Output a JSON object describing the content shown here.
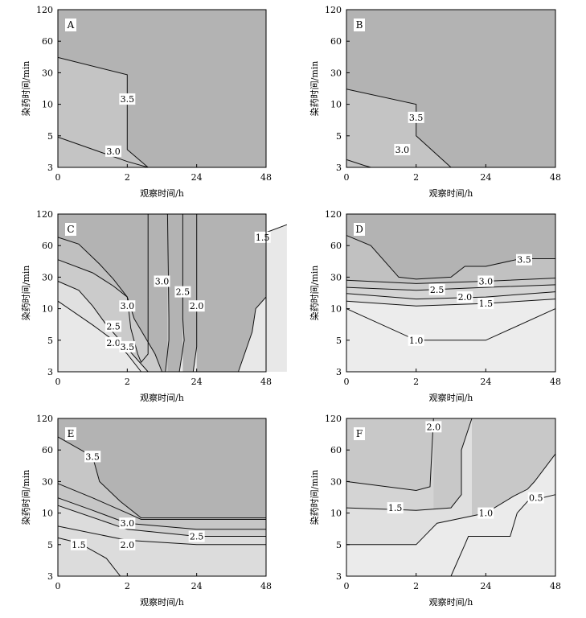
{
  "chart_data": [
    {
      "type": "contour",
      "panel_label": "A",
      "xlabel": "观察时间/h",
      "ylabel": "染药时间/min",
      "x_ticks": [
        "0",
        "2",
        "24",
        "48"
      ],
      "y_ticks": [
        "3",
        "5",
        "10",
        "30",
        "60",
        "120"
      ],
      "fill_levels": [
        "#c4c4c4",
        "#b3b3b3"
      ],
      "contours": [
        {
          "label": "3.0",
          "points": [
            [
              0,
              4.9
            ],
            [
              1,
              3.3
            ],
            [
              1.3,
              3
            ]
          ],
          "label_at": [
            0.8,
            3.9
          ]
        },
        {
          "label": "3.5",
          "points": [
            [
              0,
              42
            ],
            [
              1,
              28
            ],
            [
              1,
              4
            ],
            [
              1.3,
              3
            ]
          ],
          "label_at": [
            1,
            12
          ]
        }
      ]
    },
    {
      "type": "contour",
      "panel_label": "B",
      "xlabel": "观察时间/h",
      "ylabel": "染药时间/min",
      "x_ticks": [
        "0",
        "2",
        "24",
        "48"
      ],
      "y_ticks": [
        "3",
        "5",
        "10",
        "30",
        "60",
        "120"
      ],
      "fill_levels": [
        "#c4c4c4",
        "#b3b3b3"
      ],
      "contours": [
        {
          "label": "3.0",
          "points": [
            [
              0,
              3.4
            ],
            [
              0.25,
              3.1
            ],
            [
              0.35,
              3
            ]
          ],
          "label_at": [
            0.8,
            4.0
          ]
        },
        {
          "label": "3.5",
          "points": [
            [
              0,
              17
            ],
            [
              1,
              10
            ],
            [
              1,
              5
            ],
            [
              1.5,
              3
            ]
          ],
          "label_at": [
            1,
            7.5
          ]
        }
      ]
    },
    {
      "type": "contour",
      "panel_label": "C",
      "xlabel": "观察时间/h",
      "ylabel": "染药时间/min",
      "x_ticks": [
        "0",
        "2",
        "24",
        "48"
      ],
      "y_ticks": [
        "3",
        "5",
        "10",
        "30",
        "60",
        "120"
      ],
      "fill_levels": [
        "#e8e8e8",
        "#e0e0e0",
        "#d6d6d6",
        "#cbcbcb",
        "#c0c0c0",
        "#b3b3b3"
      ],
      "contours": [
        {
          "label": "1.5",
          "points": [
            [
              2.6,
              3
            ],
            [
              2.8,
              6
            ],
            [
              2.85,
              10
            ],
            [
              3.0,
              15
            ],
            [
              3.0,
              80
            ],
            [
              3.3,
              95
            ]
          ],
          "label_at": [
            2.95,
            72
          ]
        },
        {
          "label": "2.0",
          "points": [
            [
              0,
              13
            ],
            [
              0.5,
              7
            ],
            [
              0.8,
              5
            ],
            [
              1.0,
              4
            ],
            [
              1.2,
              3
            ]
          ],
          "label_at": [
            0.8,
            4.8
          ]
        },
        {
          "label": "2.0",
          "points": [
            [
              1.95,
              3
            ],
            [
              2.0,
              4.5
            ],
            [
              2.0,
              120
            ]
          ],
          "label_at": [
            2.0,
            11
          ]
        },
        {
          "label": "2.5",
          "points": [
            [
              0,
              26
            ],
            [
              0.3,
              19
            ],
            [
              0.5,
              11
            ],
            [
              0.7,
              7
            ],
            [
              1.3,
              3
            ]
          ],
          "label_at": [
            0.8,
            6.8
          ]
        },
        {
          "label": "2.5",
          "points": [
            [
              1.75,
              3
            ],
            [
              1.82,
              5
            ],
            [
              1.8,
              8
            ],
            [
              1.8,
              120
            ]
          ],
          "label_at": [
            1.8,
            18
          ]
        },
        {
          "label": "3.0",
          "points": [
            [
              0,
              44
            ],
            [
              0.5,
              33
            ],
            [
              0.8,
              22
            ],
            [
              1.0,
              15
            ],
            [
              1.1,
              8
            ],
            [
              1.4,
              4
            ],
            [
              1.5,
              3
            ]
          ],
          "label_at": [
            1,
            11
          ]
        },
        {
          "label": "3.0",
          "points": [
            [
              1.55,
              3
            ],
            [
              1.6,
              5
            ],
            [
              1.6,
              8
            ],
            [
              1.58,
              120
            ]
          ],
          "label_at": [
            1.5,
            26
          ]
        },
        {
          "label": "3.5",
          "points": [
            [
              0,
              72
            ],
            [
              0.3,
              62
            ],
            [
              0.6,
              40
            ],
            [
              0.8,
              28
            ],
            [
              1.0,
              15
            ],
            [
              1.05,
              6.5
            ],
            [
              1.15,
              4
            ],
            [
              1.2,
              3.5
            ],
            [
              1.3,
              4
            ],
            [
              1.3,
              6.5
            ],
            [
              1.3,
              120
            ]
          ],
          "label_at": [
            1.0,
            4.5
          ]
        }
      ]
    },
    {
      "type": "contour",
      "panel_label": "D",
      "xlabel": "观察时间/h",
      "ylabel": "染药时间/min",
      "x_ticks": [
        "0",
        "2",
        "24",
        "48"
      ],
      "y_ticks": [
        "3",
        "5",
        "10",
        "30",
        "60",
        "120"
      ],
      "fill_levels": [
        "#ececec",
        "#dedede",
        "#d4d4d4",
        "#cbcbcb",
        "#c1c1c1",
        "#b3b3b3"
      ],
      "contours": [
        {
          "label": "1.0",
          "points": [
            [
              0,
              10
            ],
            [
              1,
              5
            ],
            [
              2,
              5
            ],
            [
              3,
              10
            ]
          ],
          "label_at": [
            1,
            5
          ]
        },
        {
          "label": "1.5",
          "points": [
            [
              0,
              13
            ],
            [
              1,
              11
            ],
            [
              2,
              12
            ],
            [
              3,
              14
            ]
          ],
          "label_at": [
            2,
            12
          ]
        },
        {
          "label": "2.0",
          "points": [
            [
              0,
              17
            ],
            [
              1,
              14
            ],
            [
              2,
              15
            ],
            [
              3,
              18
            ]
          ],
          "label_at": [
            1.7,
            15
          ]
        },
        {
          "label": "2.5",
          "points": [
            [
              0,
              21
            ],
            [
              1,
              19
            ],
            [
              2,
              21
            ],
            [
              3,
              23
            ]
          ],
          "label_at": [
            1.3,
            19.5
          ]
        },
        {
          "label": "3.0",
          "points": [
            [
              0,
              27
            ],
            [
              1,
              24
            ],
            [
              2,
              26
            ],
            [
              3,
              29
            ]
          ],
          "label_at": [
            2,
            26
          ]
        },
        {
          "label": "3.5",
          "points": [
            [
              0,
              75
            ],
            [
              0.35,
              60
            ],
            [
              0.75,
              30
            ],
            [
              1.0,
              28
            ],
            [
              1.5,
              30
            ],
            [
              1.7,
              38
            ],
            [
              2.0,
              38
            ],
            [
              2.5,
              45
            ],
            [
              3,
              45
            ]
          ],
          "label_at": [
            2.55,
            44
          ]
        }
      ]
    },
    {
      "type": "contour",
      "panel_label": "E",
      "xlabel": "观察时间/h",
      "ylabel": "染药时间/min",
      "x_ticks": [
        "0",
        "2",
        "24",
        "48"
      ],
      "y_ticks": [
        "3",
        "5",
        "10",
        "30",
        "60",
        "120"
      ],
      "fill_levels": [
        "#dcdcdc",
        "#cfcfcf",
        "#c6c6c6",
        "#bdbdbd",
        "#b3b3b3"
      ],
      "contours": [
        {
          "label": "1.5",
          "points": [
            [
              0,
              5.8
            ],
            [
              0.3,
              5.2
            ],
            [
              0.7,
              4
            ],
            [
              0.9,
              3
            ],
            [
              1.0,
              3
            ]
          ],
          "label_at": [
            0.3,
            5
          ]
        },
        {
          "label": "2.0",
          "points": [
            [
              0,
              7.5
            ],
            [
              1,
              5.5
            ],
            [
              2,
              5.0
            ],
            [
              3,
              5.0
            ]
          ],
          "label_at": [
            1,
            5
          ]
        },
        {
          "label": "2.5",
          "points": [
            [
              0,
              13
            ],
            [
              1,
              7
            ],
            [
              2,
              6
            ],
            [
              3,
              6
            ]
          ],
          "label_at": [
            2,
            6
          ]
        },
        {
          "label": "3.0",
          "points": [
            [
              0,
              17
            ],
            [
              0.5,
              11
            ],
            [
              1,
              8
            ],
            [
              2,
              7
            ],
            [
              3,
              7
            ]
          ],
          "label_at": [
            1,
            8
          ]
        },
        {
          "label": "3.5",
          "points": [
            [
              0,
              28
            ],
            [
              0.5,
              17
            ],
            [
              1,
              10
            ],
            [
              1.2,
              8.7
            ],
            [
              2,
              8.7
            ],
            [
              3,
              8.7
            ]
          ],
          "label_at": [
            0.5,
            52
          ]
        },
        {
          "label": "3.5",
          "points": [
            [
              0,
              80
            ],
            [
              0.5,
              52
            ],
            [
              0.6,
              30
            ],
            [
              0.9,
              15
            ],
            [
              1.2,
              9
            ],
            [
              3,
              9
            ]
          ],
          "label_at": [
            0.5,
            52
          ]
        }
      ]
    },
    {
      "type": "contour",
      "panel_label": "F",
      "xlabel": "观察时间/h",
      "ylabel": "染药时间/min",
      "x_ticks": [
        "0",
        "2",
        "24",
        "48"
      ],
      "y_ticks": [
        "3",
        "5",
        "10",
        "30",
        "60",
        "120"
      ],
      "fill_levels": [
        "#ebebeb",
        "#e0e0e0",
        "#d4d4d4",
        "#c8c8c8"
      ],
      "contours": [
        {
          "label": "0.5",
          "points": [
            [
              1.5,
              3
            ],
            [
              1.7,
              5
            ],
            [
              1.75,
              6
            ],
            [
              2,
              6
            ],
            [
              2.35,
              6
            ],
            [
              2.45,
              10
            ],
            [
              2.6,
              15
            ],
            [
              3,
              19
            ]
          ],
          "label_at": [
            2.72,
            17
          ]
        },
        {
          "label": "1.0",
          "points": [
            [
              0,
              5
            ],
            [
              1,
              5
            ],
            [
              1.3,
              8
            ],
            [
              2,
              10
            ],
            [
              2.4,
              18
            ],
            [
              2.6,
              23
            ],
            [
              2.7,
              30
            ],
            [
              3,
              55
            ]
          ],
          "label_at": [
            2,
            10
          ]
        },
        {
          "label": "1.5",
          "points": [
            [
              0,
              12
            ],
            [
              1,
              11
            ],
            [
              1.5,
              12
            ],
            [
              1.65,
              19
            ],
            [
              1.65,
              60
            ],
            [
              1.8,
              120
            ]
          ],
          "label_at": [
            0.7,
            12
          ]
        },
        {
          "label": "2.0",
          "points": [
            [
              0,
              30
            ],
            [
              1,
              22
            ],
            [
              1.2,
              25
            ],
            [
              1.25,
              120
            ]
          ],
          "label_at": [
            1.25,
            100
          ]
        }
      ]
    }
  ]
}
